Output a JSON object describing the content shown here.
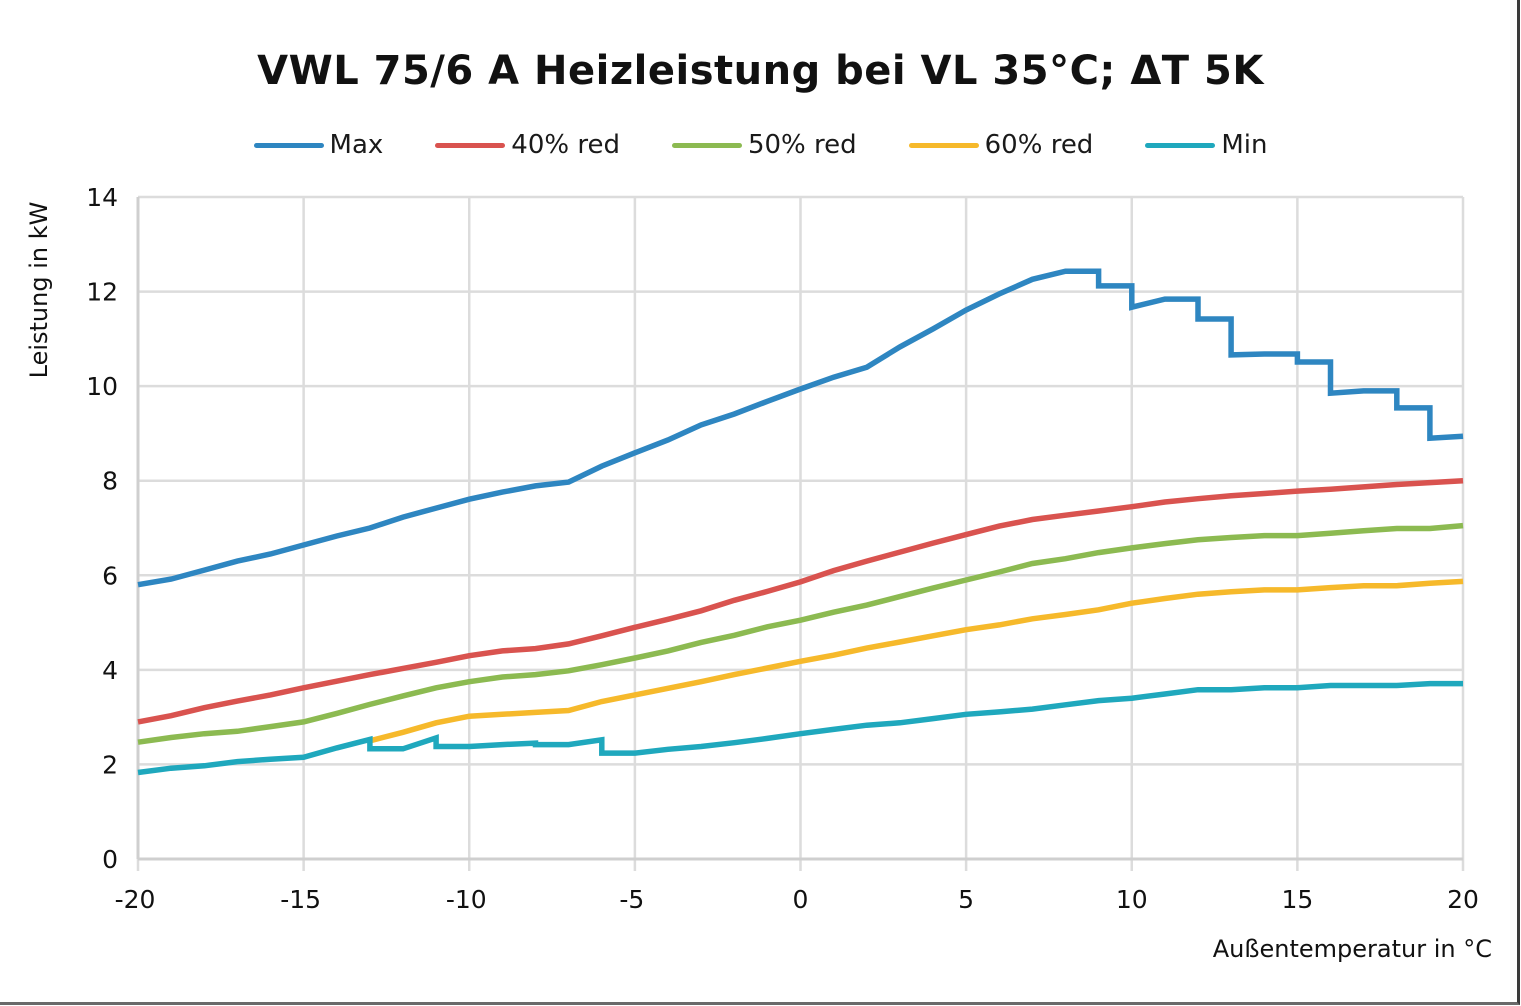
{
  "chart_data": {
    "type": "line",
    "title": "VWL 75/6 A Heizleistung bei VL 35°C; ΔT 5K",
    "xlabel": "Außentemperatur in °C",
    "ylabel": "Leistung in kW",
    "xlim": [
      -20,
      20
    ],
    "ylim": [
      0,
      14
    ],
    "x_ticks": [
      -20,
      -15,
      -10,
      -5,
      0,
      5,
      10,
      15,
      20
    ],
    "y_ticks": [
      0,
      2,
      4,
      6,
      8,
      10,
      12,
      14
    ],
    "grid": true,
    "legend_position": "top",
    "series": [
      {
        "name": "Max",
        "color": "#2e86c1",
        "points": [
          [
            -20,
            5.8
          ],
          [
            -19,
            5.92
          ],
          [
            -18,
            6.11
          ],
          [
            -17,
            6.3
          ],
          [
            -16,
            6.45
          ],
          [
            -15,
            6.64
          ],
          [
            -14,
            6.83
          ],
          [
            -13,
            7.0
          ],
          [
            -12,
            7.23
          ],
          [
            -11,
            7.42
          ],
          [
            -10,
            7.61
          ],
          [
            -9,
            7.76
          ],
          [
            -8,
            7.89
          ],
          [
            -7,
            7.97
          ],
          [
            -6,
            8.31
          ],
          [
            -5,
            8.59
          ],
          [
            -4,
            8.86
          ],
          [
            -3,
            9.18
          ],
          [
            -2,
            9.41
          ],
          [
            -1,
            9.68
          ],
          [
            0,
            9.94
          ],
          [
            1,
            10.19
          ],
          [
            2,
            10.4
          ],
          [
            3,
            10.83
          ],
          [
            4,
            11.21
          ],
          [
            5,
            11.61
          ],
          [
            6,
            11.95
          ],
          [
            7,
            12.26
          ],
          [
            8,
            12.43
          ],
          [
            9,
            12.43
          ],
          [
            9,
            12.12
          ],
          [
            10,
            12.12
          ],
          [
            10,
            11.67
          ],
          [
            11,
            11.84
          ],
          [
            12,
            11.84
          ],
          [
            12,
            11.42
          ],
          [
            13,
            11.42
          ],
          [
            13,
            10.66
          ],
          [
            14,
            10.68
          ],
          [
            15,
            10.68
          ],
          [
            15,
            10.51
          ],
          [
            16,
            10.51
          ],
          [
            16,
            9.85
          ],
          [
            17,
            9.9
          ],
          [
            18,
            9.9
          ],
          [
            18,
            9.54
          ],
          [
            19,
            9.54
          ],
          [
            19,
            8.9
          ],
          [
            20,
            8.94
          ]
        ]
      },
      {
        "name": "40% red",
        "color": "#d9534f",
        "points": [
          [
            -20,
            2.9
          ],
          [
            -19,
            3.03
          ],
          [
            -18,
            3.2
          ],
          [
            -17,
            3.34
          ],
          [
            -16,
            3.47
          ],
          [
            -15,
            3.62
          ],
          [
            -14,
            3.76
          ],
          [
            -13,
            3.9
          ],
          [
            -12,
            4.03
          ],
          [
            -11,
            4.16
          ],
          [
            -10,
            4.3
          ],
          [
            -9,
            4.4
          ],
          [
            -8,
            4.45
          ],
          [
            -7,
            4.55
          ],
          [
            -6,
            4.72
          ],
          [
            -5,
            4.9
          ],
          [
            -4,
            5.07
          ],
          [
            -3,
            5.25
          ],
          [
            -2,
            5.47
          ],
          [
            -1,
            5.66
          ],
          [
            0,
            5.86
          ],
          [
            1,
            6.1
          ],
          [
            2,
            6.3
          ],
          [
            3,
            6.49
          ],
          [
            4,
            6.68
          ],
          [
            5,
            6.86
          ],
          [
            6,
            7.04
          ],
          [
            7,
            7.18
          ],
          [
            8,
            7.27
          ],
          [
            9,
            7.36
          ],
          [
            10,
            7.45
          ],
          [
            11,
            7.55
          ],
          [
            12,
            7.62
          ],
          [
            13,
            7.68
          ],
          [
            14,
            7.73
          ],
          [
            15,
            7.78
          ],
          [
            16,
            7.82
          ],
          [
            17,
            7.87
          ],
          [
            18,
            7.92
          ],
          [
            19,
            7.96
          ],
          [
            20,
            8.0
          ]
        ]
      },
      {
        "name": "50% red",
        "color": "#8cba51",
        "points": [
          [
            -20,
            2.47
          ],
          [
            -19,
            2.57
          ],
          [
            -18,
            2.65
          ],
          [
            -17,
            2.7
          ],
          [
            -16,
            2.8
          ],
          [
            -15,
            2.9
          ],
          [
            -14,
            3.08
          ],
          [
            -13,
            3.27
          ],
          [
            -12,
            3.45
          ],
          [
            -11,
            3.62
          ],
          [
            -10,
            3.75
          ],
          [
            -9,
            3.85
          ],
          [
            -8,
            3.9
          ],
          [
            -7,
            3.98
          ],
          [
            -6,
            4.11
          ],
          [
            -5,
            4.25
          ],
          [
            -4,
            4.4
          ],
          [
            -3,
            4.58
          ],
          [
            -2,
            4.73
          ],
          [
            -1,
            4.91
          ],
          [
            0,
            5.05
          ],
          [
            1,
            5.22
          ],
          [
            2,
            5.37
          ],
          [
            3,
            5.55
          ],
          [
            4,
            5.73
          ],
          [
            5,
            5.9
          ],
          [
            6,
            6.07
          ],
          [
            7,
            6.25
          ],
          [
            8,
            6.35
          ],
          [
            9,
            6.48
          ],
          [
            10,
            6.58
          ],
          [
            11,
            6.67
          ],
          [
            12,
            6.75
          ],
          [
            13,
            6.8
          ],
          [
            14,
            6.84
          ],
          [
            15,
            6.84
          ],
          [
            16,
            6.89
          ],
          [
            17,
            6.94
          ],
          [
            18,
            6.99
          ],
          [
            19,
            6.99
          ],
          [
            20,
            7.05
          ]
        ]
      },
      {
        "name": "60% red",
        "color": "#f6b92b",
        "points": [
          [
            -13,
            2.5
          ],
          [
            -12,
            2.68
          ],
          [
            -11,
            2.88
          ],
          [
            -10,
            3.02
          ],
          [
            -9,
            3.06
          ],
          [
            -8,
            3.1
          ],
          [
            -7,
            3.14
          ],
          [
            -6,
            3.33
          ],
          [
            -5,
            3.47
          ],
          [
            -4,
            3.61
          ],
          [
            -3,
            3.75
          ],
          [
            -2,
            3.9
          ],
          [
            -1,
            4.04
          ],
          [
            0,
            4.18
          ],
          [
            1,
            4.31
          ],
          [
            2,
            4.46
          ],
          [
            3,
            4.59
          ],
          [
            4,
            4.72
          ],
          [
            5,
            4.85
          ],
          [
            6,
            4.95
          ],
          [
            7,
            5.08
          ],
          [
            8,
            5.17
          ],
          [
            9,
            5.27
          ],
          [
            10,
            5.41
          ],
          [
            11,
            5.51
          ],
          [
            12,
            5.6
          ],
          [
            13,
            5.65
          ],
          [
            14,
            5.69
          ],
          [
            15,
            5.69
          ],
          [
            16,
            5.74
          ],
          [
            17,
            5.78
          ],
          [
            18,
            5.78
          ],
          [
            19,
            5.83
          ],
          [
            20,
            5.87
          ]
        ]
      },
      {
        "name": "Min",
        "color": "#1fa8bd",
        "points": [
          [
            -20,
            1.83
          ],
          [
            -19,
            1.92
          ],
          [
            -18,
            1.97
          ],
          [
            -17,
            2.06
          ],
          [
            -16,
            2.11
          ],
          [
            -15,
            2.15
          ],
          [
            -14,
            2.35
          ],
          [
            -13,
            2.53
          ],
          [
            -13,
            2.33
          ],
          [
            -12,
            2.33
          ],
          [
            -11,
            2.56
          ],
          [
            -11,
            2.38
          ],
          [
            -10,
            2.38
          ],
          [
            -9,
            2.42
          ],
          [
            -8,
            2.45
          ],
          [
            -8,
            2.42
          ],
          [
            -7,
            2.42
          ],
          [
            -6,
            2.52
          ],
          [
            -6,
            2.24
          ],
          [
            -5,
            2.24
          ],
          [
            -4,
            2.32
          ],
          [
            -3,
            2.38
          ],
          [
            -2,
            2.46
          ],
          [
            -1,
            2.55
          ],
          [
            0,
            2.65
          ],
          [
            1,
            2.74
          ],
          [
            2,
            2.83
          ],
          [
            3,
            2.88
          ],
          [
            4,
            2.97
          ],
          [
            5,
            3.06
          ],
          [
            6,
            3.11
          ],
          [
            7,
            3.17
          ],
          [
            8,
            3.26
          ],
          [
            9,
            3.35
          ],
          [
            10,
            3.4
          ],
          [
            11,
            3.49
          ],
          [
            12,
            3.58
          ],
          [
            13,
            3.58
          ],
          [
            14,
            3.62
          ],
          [
            15,
            3.62
          ],
          [
            16,
            3.67
          ],
          [
            17,
            3.67
          ],
          [
            18,
            3.67
          ],
          [
            19,
            3.71
          ],
          [
            20,
            3.71
          ]
        ]
      }
    ]
  }
}
